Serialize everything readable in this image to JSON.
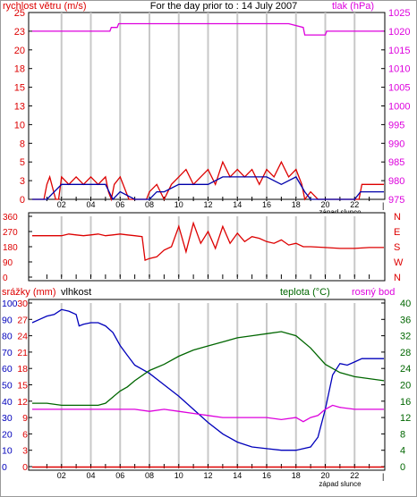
{
  "header": {
    "left_label": "rychlost větru (m/s)",
    "title": "For the day prior to : 14 July 2007",
    "right_label": "tlak (hPa)"
  },
  "colors": {
    "red": "#dd0000",
    "blue": "#0000bb",
    "green": "#006600",
    "magenta": "#dd00dd",
    "cyan_wind": "#0000aa",
    "grid": "#c8c8c8",
    "dark_cyan": "#007777"
  },
  "chart_data": [
    {
      "id": "wind",
      "type": "line",
      "title": "For the day prior to : 14 July 2007",
      "ylabel": "rychlost větru (m/s)",
      "y2label": "tlak (hPa)",
      "ylim": [
        0,
        25
      ],
      "y2lim": [
        975,
        1025
      ],
      "yticks": [
        "0",
        "3",
        "5",
        "8",
        "10",
        "13",
        "15",
        "18",
        "20",
        "23",
        "25"
      ],
      "y2ticks": [
        "975",
        "980",
        "985",
        "990",
        "995",
        "1000",
        "1005",
        "1010",
        "1015",
        "1020",
        "1025"
      ],
      "xlim": [
        0,
        24
      ],
      "xticks": [
        "02",
        "04",
        "06",
        "08",
        "10",
        "12",
        "14",
        "16",
        "18",
        "20",
        "22"
      ],
      "annotation": "západ slunce",
      "series": [
        {
          "color": "#dd00dd",
          "axis": "right",
          "x": [
            0,
            5.3,
            5.4,
            5.8,
            5.9,
            17.5,
            18.5,
            18.6,
            20,
            20.1,
            24
          ],
          "values": [
            1020,
            1020,
            1021,
            1021,
            1022,
            1022,
            1021,
            1019,
            1019,
            1020,
            1020
          ]
        },
        {
          "color": "#dd0000",
          "axis": "left",
          "x": [
            0,
            0.8,
            1,
            1.2,
            1.6,
            1.8,
            2,
            2.5,
            3,
            3.5,
            4,
            4.5,
            5,
            5.2,
            5.4,
            5.6,
            6,
            6.4,
            6.6,
            7,
            7.4,
            7.8,
            8,
            8.5,
            9,
            9.5,
            10,
            10.5,
            11,
            11.5,
            12,
            12.5,
            13,
            13.5,
            14,
            14.5,
            15,
            15.5,
            16,
            16.5,
            17,
            17.5,
            18,
            18.4,
            18.6,
            19,
            19.5,
            20,
            20.5,
            21,
            21.5,
            22,
            22.3,
            22.5,
            23,
            23.5,
            24
          ],
          "values": [
            0,
            0,
            2,
            3,
            0,
            0,
            3,
            2,
            3,
            2,
            3,
            2,
            3,
            1,
            0,
            2,
            3,
            1,
            0,
            0,
            0,
            0,
            1,
            2,
            0,
            2,
            3,
            4,
            2,
            3,
            4,
            2,
            5,
            3,
            4,
            3,
            4,
            2,
            4,
            3,
            5,
            3,
            4,
            2,
            0,
            1,
            0,
            0,
            0,
            0,
            0,
            0,
            0,
            2,
            2,
            2,
            2
          ]
        },
        {
          "color": "#0000aa",
          "axis": "left",
          "x": [
            0,
            1,
            1.5,
            2,
            3,
            4,
            5,
            5.5,
            6,
            7,
            8,
            8.5,
            9,
            10,
            11,
            12,
            13,
            14,
            15,
            16,
            17,
            18,
            18.6,
            19,
            20,
            21,
            22,
            22.4,
            23,
            24
          ],
          "values": [
            0,
            0,
            1,
            2,
            2,
            2,
            2,
            0,
            1,
            0,
            0,
            1,
            1,
            2,
            2,
            2,
            3,
            3,
            3,
            3,
            2,
            3,
            1,
            0,
            0,
            0,
            0,
            1,
            1,
            1
          ]
        }
      ]
    },
    {
      "id": "direction",
      "type": "line",
      "ylim": [
        0,
        360
      ],
      "yticks": [
        "0",
        "90",
        "180",
        "270",
        "360"
      ],
      "y2ticks": [
        "N",
        "W",
        "S",
        "E",
        "N"
      ],
      "xlim": [
        0,
        24
      ],
      "series": [
        {
          "color": "#dd0000",
          "x": [
            0,
            2,
            2.5,
            3,
            3.5,
            4,
            4.5,
            5,
            5.5,
            6,
            6.5,
            7,
            7.5,
            7.7,
            8,
            8.5,
            9,
            9.5,
            10,
            10.5,
            11,
            11.5,
            12,
            12.5,
            13,
            13.5,
            14,
            14.5,
            15,
            15.5,
            16,
            16.5,
            17,
            17.5,
            18,
            18.5,
            19,
            20,
            21,
            22,
            23,
            24
          ],
          "values": [
            245,
            245,
            255,
            250,
            245,
            250,
            255,
            245,
            250,
            255,
            250,
            245,
            240,
            100,
            110,
            120,
            160,
            180,
            300,
            150,
            320,
            200,
            270,
            170,
            300,
            200,
            260,
            210,
            240,
            230,
            210,
            200,
            220,
            190,
            200,
            180,
            180,
            175,
            170,
            170,
            175,
            175
          ]
        }
      ]
    },
    {
      "id": "humidity",
      "type": "line",
      "labels": [
        "srážky (mm)",
        "vlhkost",
        "teplota (°C)",
        "rosný bod"
      ],
      "ylim": [
        0,
        100
      ],
      "yticks": [
        "0",
        "10",
        "20",
        "30",
        "40",
        "50",
        "60",
        "70",
        "80",
        "90",
        "100"
      ],
      "y_precip_ticks": [
        "0",
        "3",
        "6",
        "9",
        "12",
        "15",
        "18",
        "21",
        "24",
        "27",
        "30"
      ],
      "y2ticks": [
        "0",
        "4",
        "8",
        "12",
        "16",
        "20",
        "24",
        "28",
        "32",
        "36",
        "40"
      ],
      "y2lim": [
        0,
        40
      ],
      "xlim": [
        0,
        24
      ],
      "xticks": [
        "02",
        "04",
        "06",
        "08",
        "10",
        "12",
        "14",
        "16",
        "18",
        "20",
        "22"
      ],
      "annotation": "západ slunce",
      "series": [
        {
          "name": "vlhkost",
          "color": "#0000bb",
          "axis": "left",
          "x": [
            0,
            0.5,
            1,
            1.5,
            2,
            2.5,
            3,
            3.2,
            3.5,
            4,
            4.5,
            5,
            5.5,
            6,
            6.5,
            7,
            8,
            9,
            10,
            11,
            12,
            13,
            14,
            15,
            16,
            17,
            18,
            19,
            19.5,
            20,
            20.5,
            21,
            21.5,
            22,
            22.5,
            23,
            24
          ],
          "values": [
            88,
            90,
            92,
            93,
            96,
            95,
            93,
            86,
            87,
            88,
            88,
            86,
            82,
            74,
            68,
            62,
            57,
            50,
            43,
            35,
            27,
            20,
            15,
            12,
            11,
            10,
            10,
            12,
            18,
            35,
            56,
            63,
            62,
            64,
            66,
            66,
            66
          ]
        },
        {
          "name": "teplota (°C)",
          "color": "#006600",
          "axis": "right",
          "x": [
            0,
            1,
            2,
            3,
            4,
            4.5,
            5,
            5.5,
            6,
            6.5,
            7,
            8,
            9,
            10,
            11,
            12,
            13,
            14,
            15,
            16,
            17,
            18,
            19,
            20,
            21,
            22,
            23,
            24
          ],
          "values": [
            15.5,
            15.5,
            15,
            15,
            15,
            15,
            15.5,
            17,
            18.5,
            19.5,
            21,
            23.5,
            25,
            27,
            28.5,
            29.5,
            30.5,
            31.5,
            32,
            32.5,
            33,
            32,
            29,
            25,
            23,
            22,
            21.5,
            21
          ]
        },
        {
          "name": "rosný bod",
          "color": "#dd00dd",
          "axis": "right",
          "x": [
            0,
            2,
            4,
            5,
            6,
            7,
            8,
            9,
            10,
            11,
            12,
            13,
            14,
            15,
            16,
            17,
            18,
            18.5,
            19,
            19.5,
            20,
            20.5,
            21,
            22,
            23,
            24
          ],
          "values": [
            14,
            14,
            14,
            14,
            14,
            14,
            13.5,
            14,
            13.5,
            13,
            12.5,
            12,
            12,
            12,
            12,
            11.5,
            12,
            11,
            12,
            12.5,
            14,
            15,
            14.5,
            14,
            14,
            14
          ]
        }
      ]
    }
  ]
}
